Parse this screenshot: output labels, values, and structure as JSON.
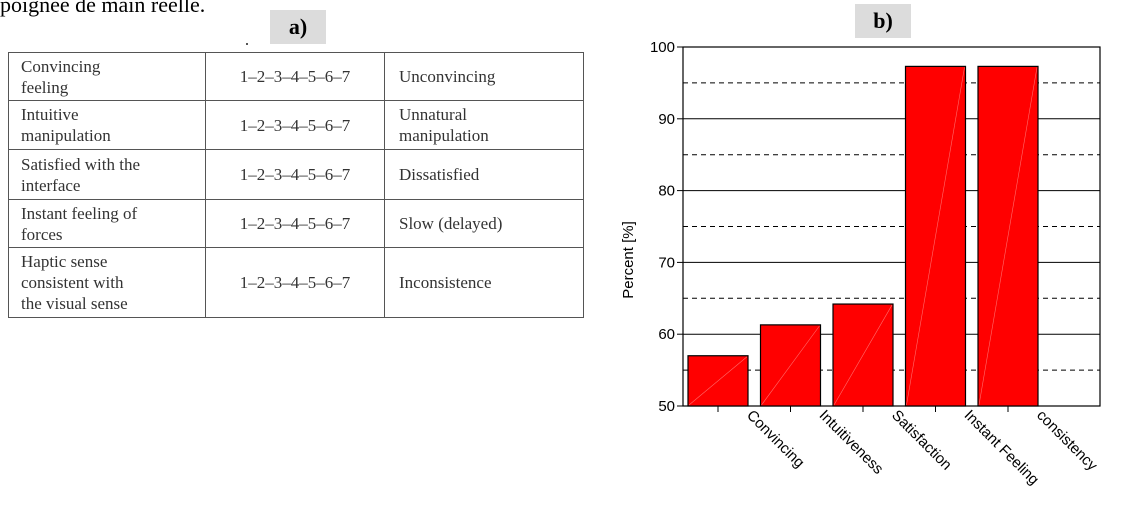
{
  "header_text": "poignée de main réelle.",
  "panel_a_label": "a)",
  "panel_b_label": "b)",
  "scale_table": {
    "rows": [
      {
        "left": [
          "Convincing",
          "feeling"
        ],
        "scale": "1–2–3–4–5–6–7",
        "right": [
          "Unconvincing"
        ]
      },
      {
        "left": [
          "Intuitive",
          "manipulation"
        ],
        "scale": "1–2–3–4–5–6–7",
        "right": [
          "Unnatural",
          "manipulation"
        ]
      },
      {
        "left": [
          "Satisfied with the",
          "interface"
        ],
        "scale": "1–2–3–4–5–6–7",
        "right": [
          "Dissatisfied"
        ]
      },
      {
        "left": [
          "Instant feeling of",
          "forces"
        ],
        "scale": "1–2–3–4–5–6–7",
        "right": [
          "Slow (delayed)"
        ]
      },
      {
        "left": [
          "Haptic sense",
          "consistent with",
          "the visual sense"
        ],
        "scale": "1–2–3–4–5–6–7",
        "right": [
          "Inconsistence"
        ]
      }
    ]
  },
  "chart_data": {
    "type": "bar",
    "title": "",
    "xlabel": "",
    "ylabel": "Percent [%]",
    "ylim": [
      50,
      100
    ],
    "yticks": [
      50,
      60,
      70,
      80,
      90,
      100
    ],
    "dashed_gridlines": [
      55,
      65,
      75,
      85,
      95
    ],
    "solid_gridlines": [
      60,
      70,
      80,
      90
    ],
    "categories": [
      "Convincing",
      "Intuitiveness",
      "Satisfaction",
      "Instant Feeling",
      "consistency"
    ],
    "values": [
      57,
      61.3,
      64.2,
      97.3,
      97.3
    ],
    "bar_color": "#ff0000",
    "bar_outline_color": "#000000",
    "tick_label_rotation": "45 degrees clockwise"
  }
}
